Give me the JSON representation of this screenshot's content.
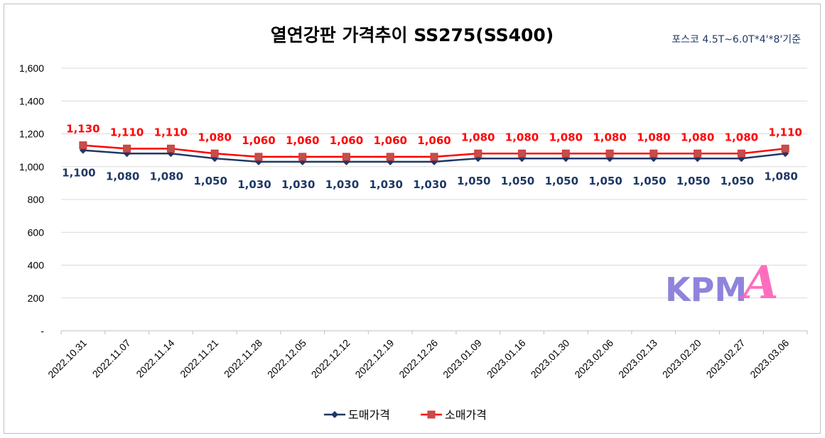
{
  "chart_data": {
    "type": "line",
    "title": "열연강판 가격추이 SS275(SS400)",
    "subtitle": "포스코 4.5T~6.0T*4'*8'기준",
    "categories": [
      "2022.10.31",
      "2022.11.07",
      "2022.11.14",
      "2022.11.21",
      "2022.11.28",
      "2022.12.05",
      "2022.12.12",
      "2022.12.19",
      "2022.12.26",
      "2023.01.09",
      "2023.01.16",
      "2023.01.30",
      "2023.02.06",
      "2023.02.13",
      "2023.02.20",
      "2023.02.27",
      "2023.03.06"
    ],
    "series": [
      {
        "name": "도매가격",
        "color": "#1f3864",
        "marker": "diamond",
        "values": [
          1100,
          1080,
          1080,
          1050,
          1030,
          1030,
          1030,
          1030,
          1030,
          1050,
          1050,
          1050,
          1050,
          1050,
          1050,
          1050,
          1080
        ],
        "labels": [
          "1,100",
          "1,080",
          "1,080",
          "1,050",
          "1,030",
          "1,030",
          "1,030",
          "1,030",
          "1,030",
          "1,050",
          "1,050",
          "1,050",
          "1,050",
          "1,050",
          "1,050",
          "1,050",
          "1,080"
        ]
      },
      {
        "name": "소매가격",
        "color": "#ff0000",
        "marker": "square",
        "values": [
          1130,
          1110,
          1110,
          1080,
          1060,
          1060,
          1060,
          1060,
          1060,
          1080,
          1080,
          1080,
          1080,
          1080,
          1080,
          1080,
          1110
        ],
        "labels": [
          "1,130",
          "1,110",
          "1,110",
          "1,080",
          "1,060",
          "1,060",
          "1,060",
          "1,060",
          "1,060",
          "1,080",
          "1,080",
          "1,080",
          "1,080",
          "1,080",
          "1,080",
          "1,080",
          "1,110"
        ]
      }
    ],
    "ylim": [
      0,
      1600
    ],
    "yticks": [
      0,
      200,
      400,
      600,
      800,
      1000,
      1200,
      1400,
      1600
    ],
    "ytick_labels": [
      "-",
      "200",
      "400",
      "600",
      "800",
      "1,000",
      "1,200",
      "1,400",
      "1,600"
    ],
    "grid": true,
    "legend_position": "bottom"
  },
  "logo": {
    "text": "KPM",
    "accent": "A",
    "colors": {
      "text": "#7b6fd6",
      "accent": "#ff5fb8"
    }
  }
}
